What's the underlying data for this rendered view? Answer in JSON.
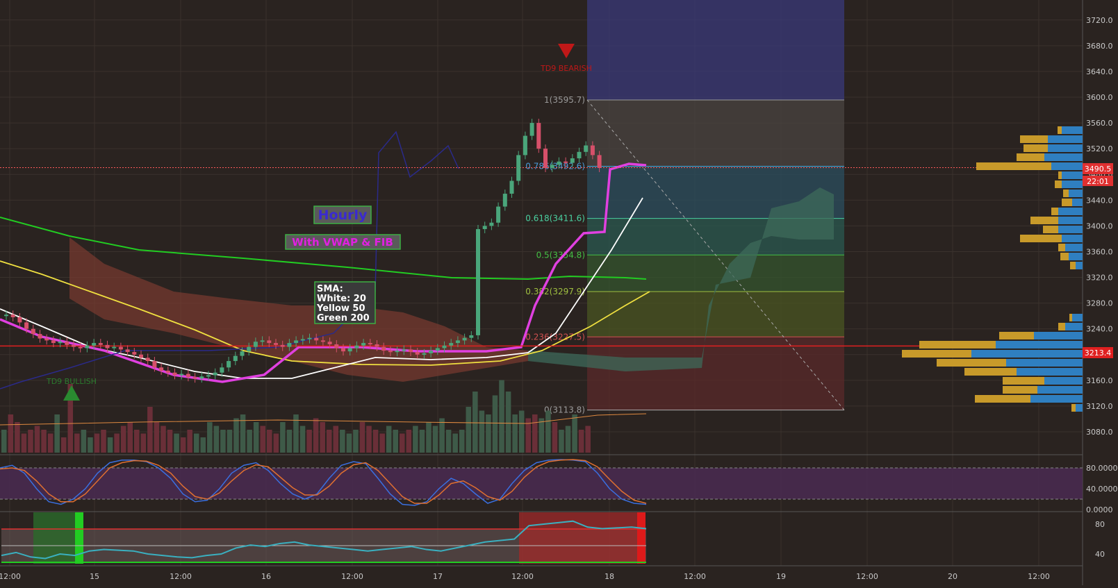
{
  "colors": {
    "background": "#2a2320",
    "grid": "#3a322d",
    "up_candle": "#4aa67b",
    "down_candle": "#d6506a",
    "vwap": "#e040e0",
    "sma_white": "#ffffff",
    "sma_yellow": "#f0e040",
    "sma_green": "#22cc22",
    "price_line": "#e02020",
    "last_price_line": "#ff5a5a",
    "fib_bands": [
      "#4a4440",
      "#2b4f5f",
      "#2a5a50",
      "#34562e",
      "#4a5522",
      "#5a2a2a"
    ],
    "cloud_red": "#7a3a30",
    "cloud_green": "#3e6a5a",
    "vp_blue": "#2f7fc0",
    "vp_gold": "#c89a2a",
    "stoch_bg": "#4a2a52",
    "stoch_blue": "#3a6fe0",
    "stoch_orange": "#e07030",
    "rsi_line": "#3ab0c0"
  },
  "annotations": {
    "hourly": "Hourly",
    "vwap_fib": "With VWAP & FIB",
    "sma_title": "SMA:",
    "sma_white": "White: 20",
    "sma_yellow": "Yellow 50",
    "sma_green": "Green 200",
    "td9_bearish": "TD9 BEARISH",
    "td9_bullish": "TD9 BULLISH"
  },
  "fib_levels": [
    {
      "label": "1(3595.7)",
      "price": 3595.7
    },
    {
      "label": "0.786(3492.6)",
      "price": 3492.6
    },
    {
      "label": "0.618(3411.6)",
      "price": 3411.6
    },
    {
      "label": "0.5(3354.8)",
      "price": 3354.8
    },
    {
      "label": "0.382(3297.9)",
      "price": 3297.9
    },
    {
      "label": "0.236(3227.5)",
      "price": 3227.5
    },
    {
      "label": "0(3113.8)",
      "price": 3113.8
    }
  ],
  "price_tags": {
    "last_price": "3490.5",
    "countdown": "22:01",
    "level_price": "3213.4"
  },
  "chart_data": {
    "type": "candlestick",
    "title": "",
    "timeframe": "Hourly",
    "y_axis_ticks": [
      3080.0,
      3120.0,
      3160.0,
      3200.0,
      3240.0,
      3280.0,
      3320.0,
      3360.0,
      3400.0,
      3440.0,
      3480.0,
      3520.0,
      3560.0,
      3600.0,
      3640.0,
      3680.0,
      3720.0
    ],
    "y_axis_labels": [
      "3080.0",
      "3120.0",
      "3160.0",
      "3200.0",
      "3240.0",
      "3280.0",
      "3320.0",
      "3360.0",
      "3400.0",
      "3440.0",
      "3480.0",
      "3520.0",
      "3560.0",
      "3600.0",
      "3640.0",
      "3680.0",
      "3720.0"
    ],
    "ylim": [
      3064,
      3730
    ],
    "x_axis_labels": [
      "12:00",
      "15",
      "12:00",
      "16",
      "12:00",
      "17",
      "12:00",
      "18",
      "12:00",
      "19",
      "12:00",
      "20",
      "12:00"
    ],
    "last_price": 3490.5,
    "horizontal_level": 3213.4,
    "close_prices": [
      3262,
      3258,
      3250,
      3240,
      3232,
      3225,
      3222,
      3218,
      3220,
      3215,
      3212,
      3210,
      3214,
      3218,
      3215,
      3210,
      3212,
      3208,
      3204,
      3200,
      3195,
      3190,
      3180,
      3175,
      3172,
      3168,
      3170,
      3165,
      3163,
      3166,
      3168,
      3172,
      3180,
      3190,
      3198,
      3205,
      3212,
      3220,
      3222,
      3218,
      3215,
      3212,
      3218,
      3222,
      3224,
      3226,
      3222,
      3220,
      3216,
      3210,
      3205,
      3210,
      3214,
      3218,
      3216,
      3212,
      3206,
      3204,
      3206,
      3208,
      3204,
      3200,
      3202,
      3206,
      3210,
      3214,
      3218,
      3222,
      3226,
      3230,
      3395,
      3400,
      3405,
      3430,
      3450,
      3470,
      3510,
      3540,
      3560,
      3520,
      3490,
      3495,
      3500,
      3498,
      3505,
      3515,
      3525,
      3510,
      3490
    ],
    "volume": [
      0.3,
      0.5,
      0.4,
      0.25,
      0.3,
      0.35,
      0.3,
      0.25,
      0.5,
      0.2,
      0.9,
      0.25,
      0.3,
      0.2,
      0.25,
      0.3,
      0.2,
      0.25,
      0.35,
      0.4,
      0.3,
      0.25,
      0.6,
      0.4,
      0.35,
      0.3,
      0.25,
      0.2,
      0.3,
      0.25,
      0.2,
      0.4,
      0.35,
      0.3,
      0.3,
      0.45,
      0.5,
      0.3,
      0.4,
      0.35,
      0.3,
      0.25,
      0.4,
      0.3,
      0.5,
      0.35,
      0.3,
      0.45,
      0.4,
      0.3,
      0.35,
      0.3,
      0.25,
      0.3,
      0.4,
      0.35,
      0.3,
      0.25,
      0.35,
      0.3,
      0.25,
      0.3,
      0.35,
      0.3,
      0.4,
      0.35,
      0.45,
      0.3,
      0.25,
      0.3,
      0.6,
      0.8,
      0.55,
      0.5,
      0.75,
      0.95,
      0.8,
      0.5,
      0.55,
      0.45,
      0.5,
      0.45,
      0.55,
      0.4,
      0.3,
      0.35,
      0.5,
      0.3,
      0.35
    ],
    "stochastic": {
      "ticks": [
        "80.0000",
        "40.0000",
        "0.0000"
      ],
      "levels": [
        80,
        20
      ],
      "k": [
        80,
        85,
        70,
        40,
        15,
        10,
        20,
        40,
        70,
        90,
        95,
        95,
        92,
        80,
        60,
        30,
        15,
        18,
        40,
        70,
        85,
        90,
        75,
        50,
        30,
        20,
        30,
        60,
        85,
        92,
        88,
        60,
        30,
        10,
        8,
        15,
        40,
        60,
        50,
        30,
        12,
        20,
        50,
        75,
        90,
        95,
        96,
        95,
        92,
        70,
        40,
        20,
        12,
        10
      ],
      "d": [
        78,
        80,
        75,
        55,
        30,
        15,
        15,
        30,
        55,
        80,
        90,
        94,
        93,
        85,
        70,
        45,
        25,
        20,
        32,
        55,
        75,
        86,
        82,
        62,
        42,
        28,
        28,
        45,
        70,
        86,
        90,
        75,
        50,
        25,
        12,
        12,
        28,
        50,
        55,
        42,
        25,
        18,
        35,
        62,
        82,
        92,
        95,
        96,
        94,
        82,
        58,
        35,
        18,
        12
      ]
    },
    "rsi": {
      "ticks": [
        "80",
        "40"
      ],
      "values": [
        38,
        42,
        36,
        34,
        40,
        38,
        44,
        46,
        45,
        44,
        40,
        38,
        36,
        35,
        38,
        40,
        48,
        52,
        50,
        54,
        56,
        52,
        50,
        48,
        46,
        44,
        46,
        48,
        50,
        46,
        44,
        48,
        52,
        56,
        58,
        60,
        78,
        80,
        82,
        84,
        76,
        74,
        75,
        76,
        74
      ]
    }
  }
}
